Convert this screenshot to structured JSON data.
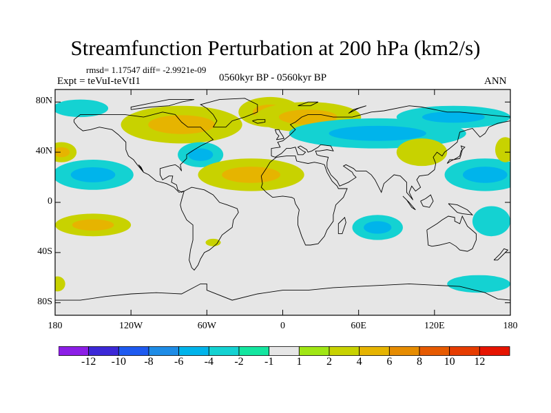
{
  "title": "Streamfunction Perturbation at 200 hPa (km2/s)",
  "stats": "rmsd= 1.17547 diff= -2.9921e-09",
  "experiment": "Expt = teVuI-teVtI1",
  "period": "0560kyr BP - 0560kyr BP",
  "season": "ANN",
  "chart_data": {
    "type": "heatmap",
    "projection": "cylindrical-equidistant",
    "title": "Streamfunction Perturbation at 200 hPa (km2/s)",
    "units": "km2/s",
    "lat_range": [
      -90,
      90
    ],
    "lon_range": [
      -180,
      180
    ],
    "y_ticks": [
      {
        "lat": 80,
        "label": "80N"
      },
      {
        "lat": 40,
        "label": "40N"
      },
      {
        "lat": 0,
        "label": "0"
      },
      {
        "lat": -40,
        "label": "40S"
      },
      {
        "lat": -80,
        "label": "80S"
      }
    ],
    "x_ticks": [
      {
        "lon": -180,
        "label": "180"
      },
      {
        "lon": -120,
        "label": "120W"
      },
      {
        "lon": -60,
        "label": "60W"
      },
      {
        "lon": 0,
        "label": "0"
      },
      {
        "lon": 60,
        "label": "60E"
      },
      {
        "lon": 120,
        "label": "120E"
      },
      {
        "lon": 180,
        "label": "180"
      }
    ],
    "colorbar": {
      "levels": [
        "-12",
        "-10",
        "-8",
        "-6",
        "-4",
        "-2",
        "-1",
        "1",
        "2",
        "4",
        "6",
        "8",
        "10",
        "12"
      ],
      "colors": [
        "#8c1ee6",
        "#3c28d7",
        "#1e5af0",
        "#1e8ce6",
        "#00b4eb",
        "#14d2d2",
        "#14e6a0",
        "#e6e6e6",
        "#a0e614",
        "#c8d200",
        "#e6b400",
        "#e68c00",
        "#e65a00",
        "#e63c00",
        "#e61400"
      ]
    },
    "anomalies": [
      {
        "name": "north-pacific-west-high",
        "lon": -175,
        "lat": 40,
        "rlon": 12,
        "rlat": 8,
        "level": "2",
        "core": "4"
      },
      {
        "name": "north-pacific-low",
        "lon": -150,
        "lat": 22,
        "rlon": 32,
        "rlat": 12,
        "level": "-2",
        "core": "-4"
      },
      {
        "name": "arctic-west-low",
        "lon": -160,
        "lat": 75,
        "rlon": 22,
        "rlat": 7,
        "level": "-2",
        "core": "-2"
      },
      {
        "name": "north-america-high",
        "lon": -80,
        "lat": 62,
        "rlon": 48,
        "rlat": 15,
        "level": "2",
        "core": "4"
      },
      {
        "name": "greenland-high",
        "lon": -10,
        "lat": 72,
        "rlon": 25,
        "rlat": 12,
        "level": "2",
        "core": "4"
      },
      {
        "name": "atlantic-low",
        "lon": -65,
        "lat": 38,
        "rlon": 18,
        "rlat": 10,
        "level": "-2",
        "core": "-4"
      },
      {
        "name": "subtropical-atlantic-high",
        "lon": -25,
        "lat": 22,
        "rlon": 42,
        "rlat": 13,
        "level": "2",
        "core": "4"
      },
      {
        "name": "europe-high",
        "lon": 20,
        "lat": 68,
        "rlon": 42,
        "rlat": 12,
        "level": "2",
        "core": "4"
      },
      {
        "name": "eurasia-low",
        "lon": 75,
        "lat": 55,
        "rlon": 70,
        "rlat": 12,
        "level": "-2",
        "core": "-4"
      },
      {
        "name": "east-asia-low",
        "lon": 135,
        "lat": 68,
        "rlon": 45,
        "rlat": 9,
        "level": "-2",
        "core": "-4"
      },
      {
        "name": "asia-high",
        "lon": 110,
        "lat": 40,
        "rlon": 20,
        "rlat": 11,
        "level": "2",
        "core": "2"
      },
      {
        "name": "west-pacific-low",
        "lon": 160,
        "lat": 22,
        "rlon": 32,
        "rlat": 13,
        "level": "-2",
        "core": "-4"
      },
      {
        "name": "dateline-high",
        "lon": 176,
        "lat": 42,
        "rlon": 8,
        "rlat": 10,
        "level": "2",
        "core": "2"
      },
      {
        "name": "south-pacific-high",
        "lon": -150,
        "lat": -18,
        "rlon": 30,
        "rlat": 9,
        "level": "2",
        "core": "4"
      },
      {
        "name": "south-america-high",
        "lon": -55,
        "lat": -32,
        "rlon": 6,
        "rlat": 3,
        "level": "2",
        "core": "2"
      },
      {
        "name": "indian-ocean-low",
        "lon": 75,
        "lat": -20,
        "rlon": 20,
        "rlat": 10,
        "level": "-2",
        "core": "-4"
      },
      {
        "name": "australia-east-low",
        "lon": 165,
        "lat": -15,
        "rlon": 15,
        "rlat": 12,
        "level": "-2",
        "core": "-2"
      },
      {
        "name": "south-pacific-west-high",
        "lon": -178,
        "lat": -65,
        "rlon": 6,
        "rlat": 6,
        "level": "2",
        "core": "2"
      },
      {
        "name": "southern-ocean-low",
        "lon": 155,
        "lat": -65,
        "rlon": 25,
        "rlat": 7,
        "level": "-2",
        "core": "-2"
      }
    ]
  }
}
